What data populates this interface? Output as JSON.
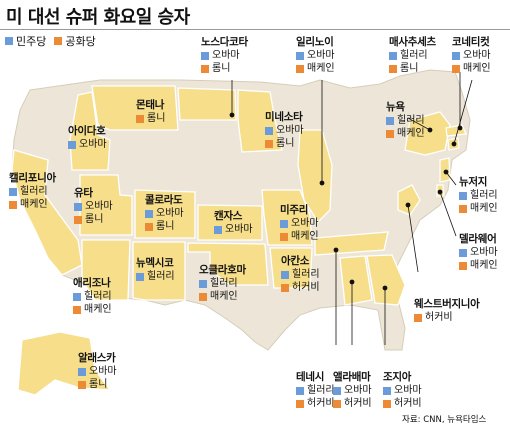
{
  "title": "미 대선 슈퍼 화요일 승자",
  "legend": {
    "dem": "민주당",
    "rep": "공화당"
  },
  "colors": {
    "dem": "#6b9bd8",
    "rep": "#ec8a35",
    "highlight_state": "#f6de8a",
    "other_state": "#ede6d8",
    "border": "#ffffff"
  },
  "states": [
    {
      "id": "north-dakota",
      "name": "노스다코타",
      "dem": "오바마",
      "rep": "롬니"
    },
    {
      "id": "illinois",
      "name": "일리노이",
      "dem": "오바마",
      "rep": "매케인"
    },
    {
      "id": "massachusetts",
      "name": "매사추세츠",
      "dem": "힐러리",
      "rep": "롬니"
    },
    {
      "id": "connecticut",
      "name": "코네티컷",
      "dem": "오바마",
      "rep": "매케인"
    },
    {
      "id": "montana",
      "name": "몬태나",
      "dem": "",
      "rep": "롬니"
    },
    {
      "id": "minnesota",
      "name": "미네소타",
      "dem": "오바마",
      "rep": "롬니"
    },
    {
      "id": "new-york",
      "name": "뉴욕",
      "dem": "힐러리",
      "rep": "매케인"
    },
    {
      "id": "idaho",
      "name": "아이다호",
      "dem": "오바마",
      "rep": ""
    },
    {
      "id": "california",
      "name": "캘리포니아",
      "dem": "힐러리",
      "rep": "매케인"
    },
    {
      "id": "utah",
      "name": "유타",
      "dem": "오바마",
      "rep": "롬니"
    },
    {
      "id": "colorado",
      "name": "콜로라도",
      "dem": "오바마",
      "rep": "롬니"
    },
    {
      "id": "kansas",
      "name": "캔자스",
      "dem": "오바마",
      "rep": ""
    },
    {
      "id": "missouri",
      "name": "미주리",
      "dem": "오바마",
      "rep": "매케인"
    },
    {
      "id": "new-jersey",
      "name": "뉴저지",
      "dem": "힐러리",
      "rep": "매케인"
    },
    {
      "id": "delaware",
      "name": "델라웨어",
      "dem": "오바마",
      "rep": "매케인"
    },
    {
      "id": "new-mexico",
      "name": "뉴멕시코",
      "dem": "힐러리",
      "rep": ""
    },
    {
      "id": "oklahoma",
      "name": "오클라호마",
      "dem": "힐러리",
      "rep": "매케인"
    },
    {
      "id": "arkansas",
      "name": "아칸소",
      "dem": "힐러리",
      "rep": "허커비"
    },
    {
      "id": "arizona",
      "name": "애리조나",
      "dem": "힐러리",
      "rep": "매케인"
    },
    {
      "id": "west-virginia",
      "name": "웨스트버지니아",
      "dem": "",
      "rep": "허커비"
    },
    {
      "id": "alaska",
      "name": "알래스카",
      "dem": "오바마",
      "rep": "롬니"
    },
    {
      "id": "tennessee",
      "name": "테네시",
      "dem": "힐러리",
      "rep": "허커비"
    },
    {
      "id": "alabama",
      "name": "앨라배마",
      "dem": "오바마",
      "rep": "허커비"
    },
    {
      "id": "georgia",
      "name": "조지아",
      "dem": "오바마",
      "rep": "허커비"
    }
  ],
  "source": "자료: CNN, 뉴욕타임스"
}
